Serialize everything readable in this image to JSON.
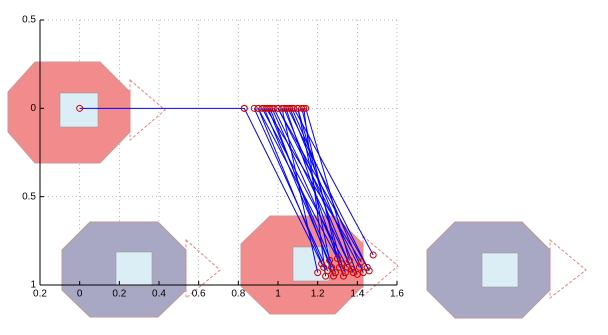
{
  "chart_data": {
    "type": "line",
    "xlim": [
      -0.2,
      1.6
    ],
    "xticks": [
      {
        "value": -0.2,
        "label": "0.2"
      },
      0,
      0.2,
      0.4,
      0.6,
      0.8,
      1,
      1.2,
      1.4,
      1.6
    ],
    "ylim": [
      -0.5,
      1
    ],
    "yticks": [
      {
        "value": -0.5,
        "label": "0.5"
      },
      0,
      0.5,
      1
    ],
    "y_reversed": true,
    "grid": true,
    "color": "#0000ff",
    "marker_color": "#d00000",
    "series": [
      {
        "x": [
          0,
          0.83
        ],
        "y": [
          0,
          0
        ]
      },
      {
        "x": [
          0.83,
          1.22
        ],
        "y": [
          0,
          0.88
        ]
      },
      {
        "x": [
          0.88,
          1.25
        ],
        "y": [
          0,
          0.92
        ]
      },
      {
        "x": [
          0.9,
          1.3
        ],
        "y": [
          0,
          0.85
        ]
      },
      {
        "x": [
          0.92,
          1.35
        ],
        "y": [
          0,
          0.9
        ]
      },
      {
        "x": [
          0.94,
          1.42
        ],
        "y": [
          0,
          0.87
        ]
      },
      {
        "x": [
          0.96,
          1.28
        ],
        "y": [
          0,
          0.95
        ]
      },
      {
        "x": [
          0.98,
          1.38
        ],
        "y": [
          0,
          0.93
        ]
      },
      {
        "x": [
          1.0,
          1.45
        ],
        "y": [
          0,
          0.9
        ]
      },
      {
        "x": [
          1.02,
          1.2
        ],
        "y": [
          0,
          0.93
        ]
      },
      {
        "x": [
          1.04,
          1.33
        ],
        "y": [
          0,
          0.95
        ]
      },
      {
        "x": [
          1.06,
          1.4
        ],
        "y": [
          0,
          0.94
        ]
      },
      {
        "x": [
          1.08,
          1.48
        ],
        "y": [
          0,
          0.83
        ]
      },
      {
        "x": [
          1.1,
          1.26
        ],
        "y": [
          0,
          0.86
        ]
      },
      {
        "x": [
          1.12,
          1.31
        ],
        "y": [
          0,
          0.9
        ]
      },
      {
        "x": [
          1.14,
          1.36
        ],
        "y": [
          0,
          0.86
        ]
      },
      {
        "x": [
          0.9,
          1.23
        ],
        "y": [
          0,
          0.9
        ]
      },
      {
        "x": [
          0.95,
          1.29
        ],
        "y": [
          0,
          0.93
        ]
      },
      {
        "x": [
          1.0,
          1.41
        ],
        "y": [
          0,
          0.9
        ]
      },
      {
        "x": [
          1.05,
          1.46
        ],
        "y": [
          0,
          0.92
        ]
      },
      {
        "x": [
          1.1,
          1.32
        ],
        "y": [
          0,
          0.88
        ]
      },
      {
        "x": [
          1.13,
          1.24
        ],
        "y": [
          0,
          0.95
        ]
      },
      {
        "x": [
          0.93,
          1.27
        ],
        "y": [
          0,
          0.9
        ]
      },
      {
        "x": [
          1.03,
          1.37
        ],
        "y": [
          0,
          0.91
        ]
      },
      {
        "x": [
          1.07,
          1.43
        ],
        "y": [
          0,
          0.93
        ]
      },
      {
        "x": [
          0.97,
          1.34
        ],
        "y": [
          0,
          0.93
        ]
      }
    ]
  }
}
